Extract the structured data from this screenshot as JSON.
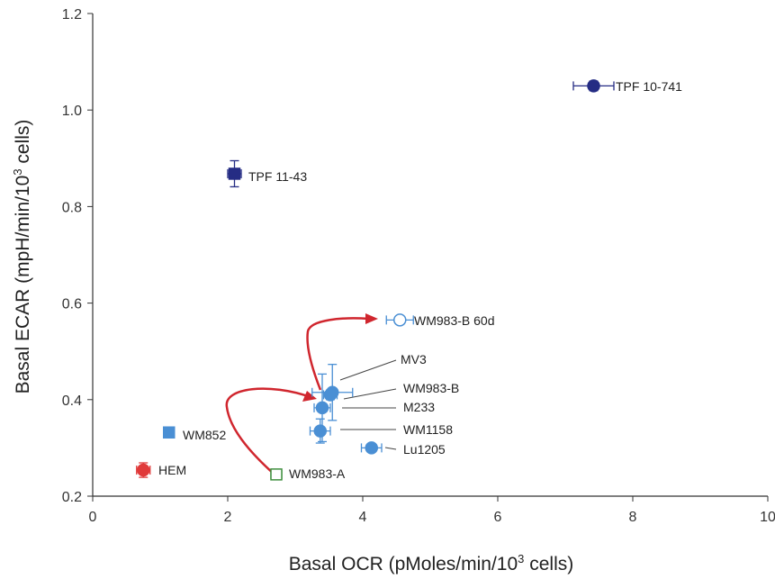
{
  "chart_data": {
    "type": "scatter",
    "title": "",
    "xlabel": {
      "pre": "Basal OCR (pMoles/min/10",
      "sup": "3",
      "post": " cells)"
    },
    "ylabel": {
      "pre": "Basal ECAR (mpH/min/10",
      "sup": "3",
      "post": " cells)"
    },
    "xlim": [
      0,
      10
    ],
    "ylim": [
      0.2,
      1.2
    ],
    "xticks": [
      0,
      2,
      4,
      6,
      8,
      10
    ],
    "yticks": [
      0.2,
      0.4,
      0.6,
      0.8,
      1.0,
      1.2
    ],
    "xtick_labels": [
      "0",
      "2",
      "4",
      "6",
      "8",
      "10"
    ],
    "ytick_labels": [
      "0.2",
      "0.4",
      "0.6",
      "0.8",
      "1.0",
      "1.2"
    ],
    "grid": false,
    "colors": {
      "light_blue": "#4a8fd4",
      "dark_blue": "#252c84",
      "red": "#e03a3a",
      "green": "#3f8f3f",
      "arrow": "#d0262e",
      "leader": "#444444"
    },
    "points": [
      {
        "name": "TPF 10-741",
        "x": 7.42,
        "y": 1.05,
        "xerr": 0.3,
        "yerr": 0.01,
        "marker": "circle",
        "fill": "dark_blue",
        "hollow": false
      },
      {
        "name": "TPF 11-43",
        "x": 2.1,
        "y": 0.868,
        "xerr": 0.1,
        "yerr": 0.027,
        "marker": "square",
        "fill": "dark_blue",
        "hollow": false
      },
      {
        "name": "WM983-B 60d",
        "x": 4.55,
        "y": 0.565,
        "xerr": 0.2,
        "yerr": 0.008,
        "marker": "circle",
        "fill": "light_blue",
        "hollow": true
      },
      {
        "name": "MV3",
        "x": 3.55,
        "y": 0.415,
        "xerr": 0.3,
        "yerr": 0.058,
        "marker": "circle",
        "fill": "light_blue",
        "hollow": false
      },
      {
        "name": "WM983-B",
        "x": 3.52,
        "y": 0.41,
        "xerr": 0.1,
        "yerr": 0.01,
        "marker": "circle",
        "fill": "light_blue",
        "hollow": false
      },
      {
        "name": "M233",
        "x": 3.4,
        "y": 0.383,
        "xerr": 0.12,
        "yerr": 0.07,
        "marker": "circle",
        "fill": "light_blue",
        "hollow": false
      },
      {
        "name": "WM1158",
        "x": 3.37,
        "y": 0.335,
        "xerr": 0.15,
        "yerr": 0.025,
        "marker": "circle",
        "fill": "light_blue",
        "hollow": false
      },
      {
        "name": "Lu1205",
        "x": 4.13,
        "y": 0.3,
        "xerr": 0.15,
        "yerr": 0.008,
        "marker": "circle",
        "fill": "light_blue",
        "hollow": false
      },
      {
        "name": "WM852",
        "x": 1.13,
        "y": 0.332,
        "xerr": 0.07,
        "yerr": 0.01,
        "marker": "square",
        "fill": "light_blue",
        "hollow": false
      },
      {
        "name": "HEM",
        "x": 0.75,
        "y": 0.254,
        "xerr": 0.1,
        "yerr": 0.015,
        "marker": "circle",
        "fill": "red",
        "hollow": false
      },
      {
        "name": "WM983-A",
        "x": 2.72,
        "y": 0.245,
        "xerr": 0.08,
        "yerr": 0.01,
        "marker": "square",
        "fill": "green",
        "hollow": true
      }
    ]
  }
}
